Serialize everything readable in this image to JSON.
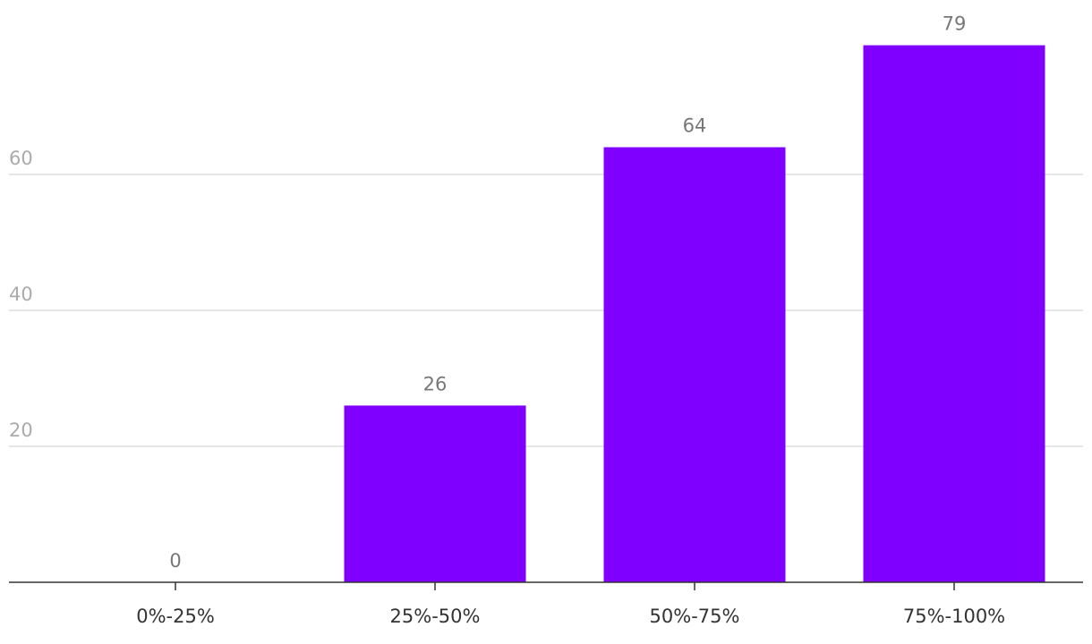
{
  "chart_data": {
    "type": "bar",
    "categories": [
      "0%-25%",
      "25%-50%",
      "50%-75%",
      "75%-100%"
    ],
    "values": [
      0,
      26,
      64,
      79
    ],
    "color": "#8000ff",
    "ylim": [
      0,
      85
    ],
    "yticks": [
      20,
      40,
      60
    ],
    "grid": true
  }
}
